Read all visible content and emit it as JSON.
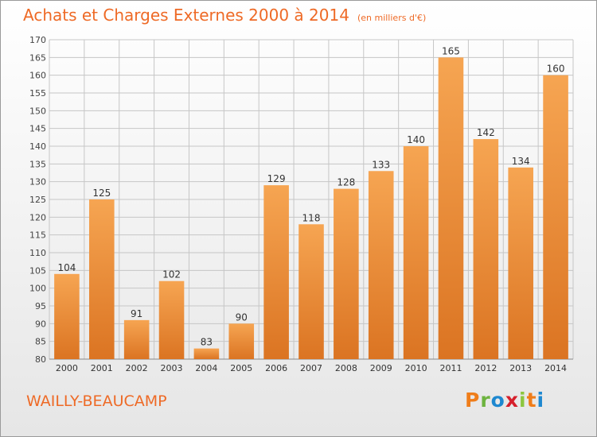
{
  "header": {
    "title": "Achats et Charges Externes 2000 à 2014",
    "unit": "(en milliers d'€)"
  },
  "footer": {
    "commune": "WAILLY-BEAUCAMP",
    "logo_letters": [
      "P",
      "r",
      "o",
      "x",
      "i",
      "t",
      "i"
    ],
    "logo_colors": [
      "#ef7d1a",
      "#6db33f",
      "#1e88d0",
      "#d6202c",
      "#8cc63f",
      "#ef7d1a",
      "#1e88d0"
    ]
  },
  "colors": {
    "accent": "#ee6a26",
    "bar_light": "#f6a552",
    "bar_dark": "#db7422",
    "grid": "#c6c6c6"
  },
  "chart_data": {
    "type": "bar",
    "categories": [
      "2000",
      "2001",
      "2002",
      "2003",
      "2004",
      "2005",
      "2006",
      "2007",
      "2008",
      "2009",
      "2010",
      "2011",
      "2012",
      "2013",
      "2014"
    ],
    "values": [
      104,
      125,
      91,
      102,
      83,
      90,
      129,
      118,
      128,
      133,
      140,
      165,
      142,
      134,
      160
    ],
    "ylim": [
      80,
      170
    ],
    "yticks": [
      80,
      85,
      90,
      95,
      100,
      105,
      110,
      115,
      120,
      125,
      130,
      135,
      140,
      145,
      150,
      155,
      160,
      165,
      170
    ],
    "grid": true,
    "data_labels": true
  }
}
